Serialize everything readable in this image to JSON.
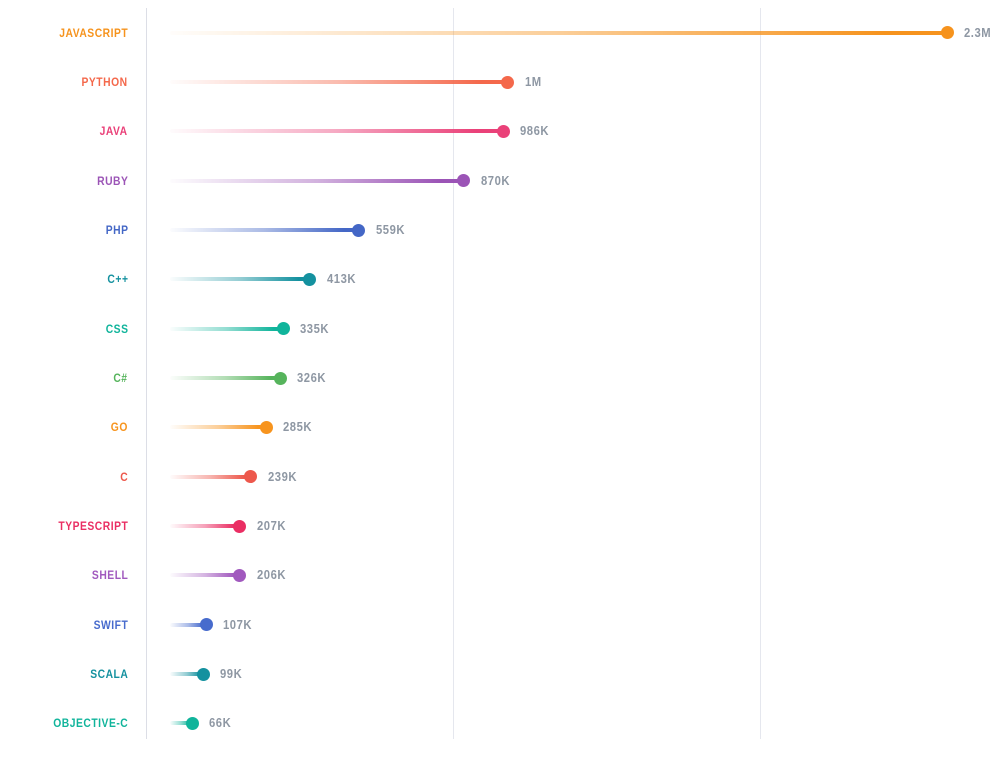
{
  "chart_data": {
    "type": "bar",
    "variant": "lollipop",
    "orientation": "horizontal",
    "categories": [
      "JAVASCRIPT",
      "PYTHON",
      "JAVA",
      "RUBY",
      "PHP",
      "C++",
      "CSS",
      "C#",
      "GO",
      "C",
      "TYPESCRIPT",
      "SHELL",
      "SWIFT",
      "SCALA",
      "OBJECTIVE-C"
    ],
    "values": [
      2300000,
      1000000,
      986000,
      870000,
      559000,
      413000,
      335000,
      326000,
      285000,
      239000,
      207000,
      206000,
      107000,
      99000,
      66000
    ],
    "value_labels": [
      "2.3M",
      "1M",
      "986K",
      "870K",
      "559K",
      "413K",
      "335K",
      "326K",
      "285K",
      "239K",
      "207K",
      "206K",
      "107K",
      "99K",
      "66K"
    ],
    "colors": [
      "#F6931D",
      "#F4684B",
      "#EA4179",
      "#9B54B6",
      "#4467C6",
      "#14919F",
      "#10B49B",
      "#56B45C",
      "#F7941E",
      "#ED584C",
      "#EA2E63",
      "#A159BE",
      "#476BCD",
      "#14919F",
      "#10B49B"
    ],
    "xlim": [
      0,
      2300000
    ],
    "grid": "vertical",
    "legend": false,
    "colors_meta": {
      "value_label": "#8E97A3",
      "axis_line": "#DCDEE6",
      "gridline": "#E5E7EE",
      "background": "#FFFFFF"
    }
  }
}
